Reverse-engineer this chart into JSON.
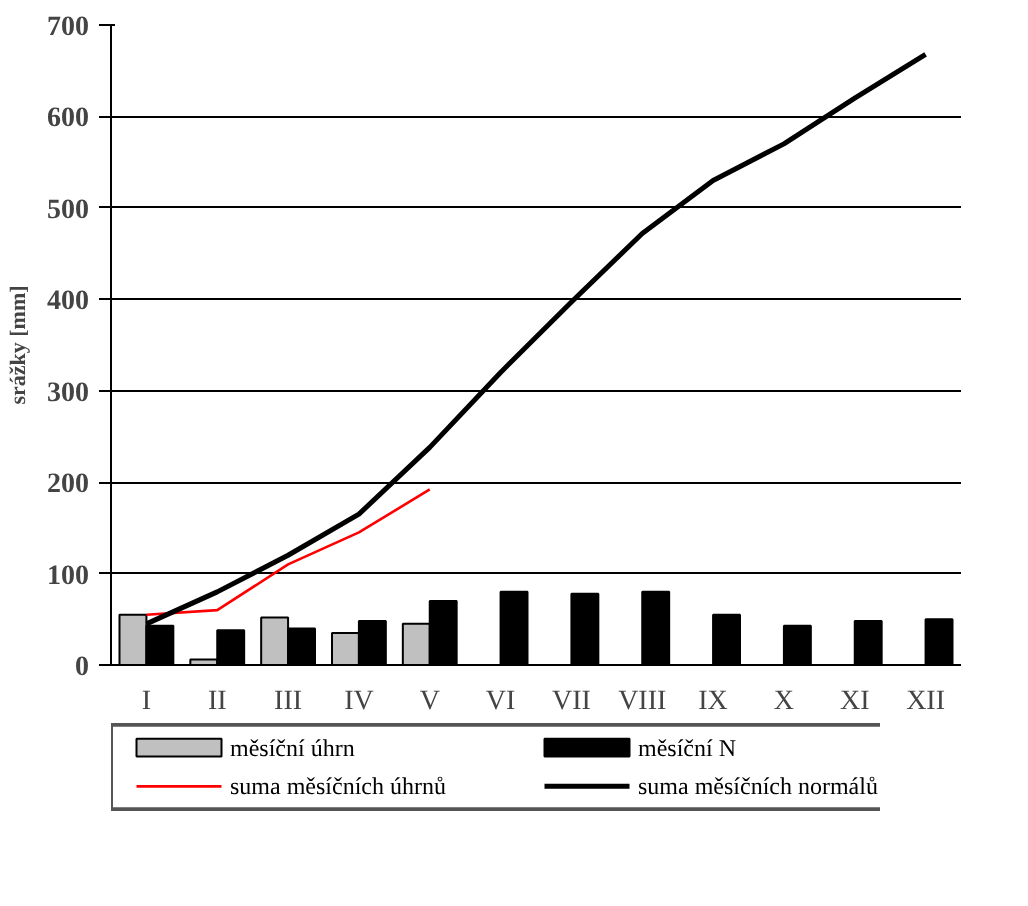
{
  "chart_data": {
    "type": "bar",
    "ylabel": "srážky [mm]",
    "categories": [
      "I",
      "II",
      "III",
      "IV",
      "V",
      "VI",
      "VII",
      "VIII",
      "IX",
      "X",
      "XI",
      "XII"
    ],
    "series": [
      {
        "name": "měsíční úhrn",
        "color": "#c0c0c0",
        "values": [
          55,
          6,
          52,
          35,
          45,
          null,
          null,
          null,
          null,
          null,
          null,
          null
        ]
      },
      {
        "name": "měsíční N",
        "color": "#000000",
        "values": [
          43,
          38,
          40,
          48,
          70,
          80,
          78,
          80,
          55,
          43,
          48,
          50
        ]
      },
      {
        "name": "suma měsíčních úhrnů",
        "type": "line",
        "color": "#ff0000",
        "values": [
          55,
          60,
          110,
          145,
          192,
          null,
          null,
          null,
          null,
          null,
          null,
          null
        ]
      },
      {
        "name": "suma měsíčních normálů",
        "type": "line",
        "color": "#000000",
        "values": [
          45,
          80,
          120,
          165,
          238,
          320,
          397,
          472,
          530,
          570,
          620,
          668
        ]
      }
    ],
    "ylim": [
      0,
      700
    ],
    "yticks": [
      0,
      100,
      200,
      300,
      400,
      500,
      600,
      700
    ],
    "grid": "y",
    "legend": "bottom"
  }
}
